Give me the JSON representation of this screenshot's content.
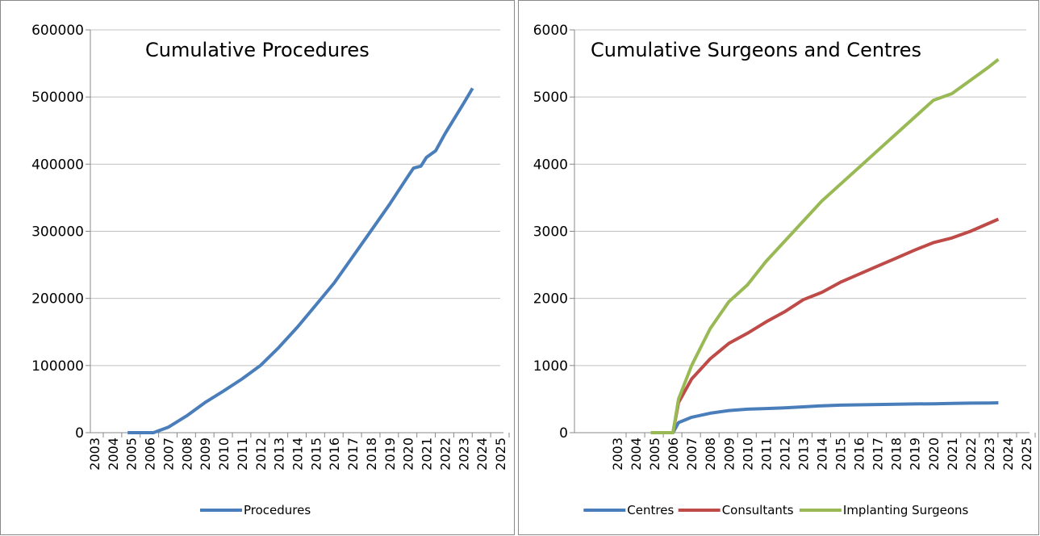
{
  "chart_data": [
    {
      "type": "line",
      "title": "Cumulative Procedures",
      "x": [
        2004.8,
        2006.2,
        2007,
        2008,
        2009,
        2010,
        2011,
        2012,
        2013,
        2014,
        2015,
        2016,
        2017,
        2018,
        2019,
        2020,
        2020.3,
        2020.7,
        2021,
        2021.5,
        2022,
        2023,
        2023.5
      ],
      "series": [
        {
          "name": "Procedures",
          "color": "#4a7ebb",
          "values": [
            0,
            0,
            8000,
            25000,
            45000,
            62000,
            80000,
            100000,
            127000,
            157000,
            190000,
            223000,
            262000,
            301000,
            340000,
            382000,
            394000,
            397000,
            410000,
            420000,
            445000,
            490000,
            513000
          ]
        }
      ],
      "xlim": [
        2003,
        2025
      ],
      "xticks": [
        2003,
        2004,
        2005,
        2006,
        2007,
        2008,
        2009,
        2010,
        2011,
        2012,
        2013,
        2014,
        2015,
        2016,
        2017,
        2018,
        2019,
        2020,
        2021,
        2022,
        2023,
        2024,
        2025
      ],
      "ylim": [
        0,
        600000
      ],
      "yticks": [
        0,
        100000,
        200000,
        300000,
        400000,
        500000,
        600000
      ],
      "grid": true,
      "legend": "bottom"
    },
    {
      "type": "line",
      "title": "Cumulative Surgeons and Centres",
      "x": [
        2004.8,
        2006.0,
        2006.3,
        2007,
        2008,
        2009,
        2010,
        2011,
        2012,
        2013,
        2014,
        2015,
        2016,
        2017,
        2018,
        2019,
        2020,
        2021,
        2022,
        2023,
        2023.5
      ],
      "series": [
        {
          "name": "Centres",
          "color": "#4a7ebb",
          "values": [
            0,
            0,
            150,
            230,
            290,
            330,
            350,
            360,
            370,
            385,
            400,
            410,
            415,
            420,
            425,
            428,
            430,
            435,
            440,
            443,
            445
          ]
        },
        {
          "name": "Consultants",
          "color": "#be4b48",
          "values": [
            0,
            0,
            450,
            800,
            1100,
            1330,
            1480,
            1650,
            1800,
            1980,
            2090,
            2240,
            2360,
            2480,
            2600,
            2720,
            2830,
            2900,
            3000,
            3120,
            3180
          ]
        },
        {
          "name": "Implanting Surgeons",
          "color": "#98b954",
          "values": [
            0,
            0,
            500,
            1000,
            1550,
            1950,
            2200,
            2550,
            2850,
            3150,
            3450,
            3700,
            3950,
            4200,
            4450,
            4700,
            4950,
            5050,
            5250,
            5450,
            5560
          ]
        }
      ],
      "xlim": [
        2003,
        2025
      ],
      "xticks": [
        2003,
        2004,
        2005,
        2006,
        2007,
        2008,
        2009,
        2010,
        2011,
        2012,
        2013,
        2014,
        2015,
        2016,
        2017,
        2018,
        2019,
        2020,
        2021,
        2022,
        2023,
        2024,
        2025
      ],
      "ylim": [
        0,
        6000
      ],
      "yticks": [
        0,
        1000,
        2000,
        3000,
        4000,
        5000,
        6000
      ],
      "grid": true,
      "legend": "bottom"
    }
  ]
}
